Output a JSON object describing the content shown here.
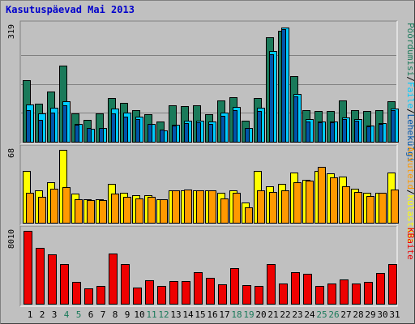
{
  "title": "Kasutuspäevad Mai 2013",
  "colors": {
    "background": "#c0c0c0",
    "frame_outer": "#808080",
    "frame_inner": "#404040",
    "gridline": "#808080",
    "title": "#0000cc",
    "visits": "#1a7a5a",
    "pages": "#1a7a5a",
    "files": "#00ccff",
    "hits": "#0055aa",
    "sites": "#ff9900",
    "kbytes": "#ee0000",
    "tick_default": "#000000",
    "tick_weekend": "#1a7a5a"
  },
  "chart_data": {
    "type": "bar",
    "categories": [
      "1",
      "2",
      "3",
      "4",
      "5",
      "6",
      "7",
      "8",
      "9",
      "10",
      "11",
      "12",
      "13",
      "14",
      "15",
      "16",
      "17",
      "18",
      "19",
      "20",
      "21",
      "22",
      "23",
      "24",
      "25",
      "26",
      "27",
      "28",
      "29",
      "30",
      "31"
    ],
    "weekend_days": [
      "4",
      "5",
      "11",
      "12",
      "18",
      "19",
      "25",
      "26"
    ],
    "panels": [
      {
        "id": "top",
        "ymax_label": "319",
        "ymax": 319,
        "legend": [
          {
            "text": "Pöördumisi",
            "color": "#1a7a5a"
          },
          {
            "text": "/",
            "color": "#000000"
          },
          {
            "text": "Faile",
            "color": "#00ccff"
          },
          {
            "text": "/",
            "color": "#000000"
          },
          {
            "text": "Lehekülgi",
            "color": "#0055aa"
          }
        ],
        "series": [
          {
            "name": "Pöördumisi",
            "color": "#1a7a5a",
            "values": [
              170,
              104,
              138,
              210,
              78,
              61,
              77,
              121,
              108,
              88,
              76,
              55,
              101,
              98,
              101,
              76,
              114,
              123,
              58,
              120,
              288,
              306,
              180,
              88,
              85,
              84,
              114,
              87,
              84,
              87,
              112
            ]
          },
          {
            "name": "Faile",
            "color": "#00ccff",
            "values": [
              102,
              78,
              94,
              111,
              48,
              36,
              39,
              91,
              81,
              70,
              48,
              32,
              46,
              58,
              59,
              55,
              80,
              97,
              38,
              94,
              250,
              314,
              131,
              62,
              55,
              55,
              68,
              62,
              44,
              52,
              91
            ]
          },
          {
            "name": "Lehekülgi",
            "color": "#0055aa",
            "values": [
              88,
              60,
              80,
              100,
              46,
              38,
              38,
              77,
              70,
              62,
              48,
              34,
              44,
              52,
              53,
              50,
              72,
              86,
              38,
              84,
              240,
              310,
              125,
              56,
              54,
              54,
              62,
              57,
              42,
              50,
              86
            ]
          }
        ]
      },
      {
        "id": "middle",
        "ymax_label": "68",
        "ymax": 68,
        "legend": [
          {
            "text": "Arvuteid",
            "color": "#ff9900"
          },
          {
            "text": "/",
            "color": "#000000"
          },
          {
            "text": "Külastusi",
            "color": "#ffff00"
          }
        ],
        "series": [
          {
            "name": "Külastusi",
            "color": "#ffff00",
            "values": [
              48,
              30,
              38,
              68,
              27,
              22,
              22,
              36,
              28,
              26,
              26,
              22,
              30,
              30,
              30,
              30,
              28,
              30,
              19,
              48,
              34,
              36,
              47,
              40,
              48,
              46,
              43,
              32,
              28,
              28,
              47
            ]
          },
          {
            "name": "Arvuteid",
            "color": "#ff9900",
            "values": [
              28,
              24,
              32,
              33,
              22,
              21,
              21,
              27,
              24,
              23,
              24,
              22,
              30,
              31,
              30,
              30,
              23,
              28,
              14,
              30,
              29,
              30,
              38,
              39,
              52,
              42,
              34,
              29,
              25,
              28,
              31
            ]
          }
        ]
      },
      {
        "id": "bottom",
        "ymax_label": "8010",
        "ymax": 8010,
        "legend": [
          {
            "text": "KBaite",
            "color": "#ee0000"
          }
        ],
        "series": [
          {
            "name": "KBaite",
            "color": "#ee0000",
            "values": [
              8010,
              6150,
              5400,
              4350,
              2440,
              1680,
              1960,
              5550,
              4400,
              1750,
              2560,
              1960,
              2460,
              2480,
              3470,
              2880,
              2130,
              3950,
              2090,
              1920,
              4350,
              2240,
              3470,
              3330,
              2000,
              2240,
              2640,
              2200,
              2380,
              3420,
              4400
            ]
          }
        ]
      }
    ]
  }
}
